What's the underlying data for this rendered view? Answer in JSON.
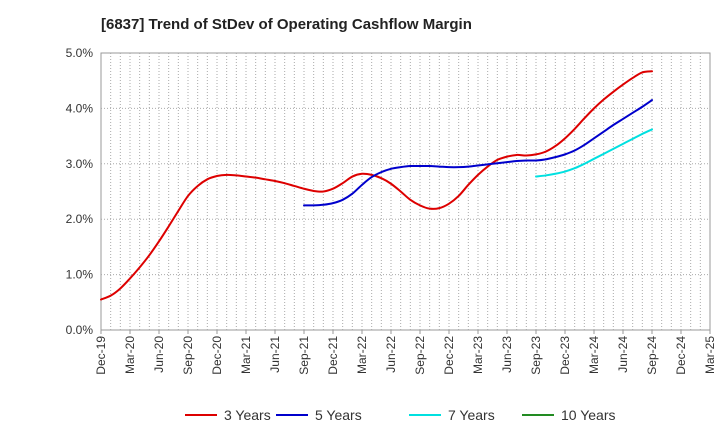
{
  "chart_data": {
    "type": "line",
    "title": "[6837]  Trend of StDev of Operating Cashflow Margin",
    "xlabel": "",
    "ylabel": "",
    "ylim": [
      0,
      5
    ],
    "grid": true,
    "legend_position": "bottom",
    "x_tick_labels": [
      "Dec-19",
      "Mar-20",
      "Jun-20",
      "Sep-20",
      "Dec-20",
      "Mar-21",
      "Jun-21",
      "Sep-21",
      "Dec-21",
      "Mar-22",
      "Jun-22",
      "Sep-22",
      "Dec-22",
      "Mar-23",
      "Jun-23",
      "Sep-23",
      "Dec-23",
      "Mar-24",
      "Jun-24",
      "Sep-24",
      "Dec-24",
      "Mar-25"
    ],
    "y_tick_labels": [
      "0.0%",
      "1.0%",
      "2.0%",
      "3.0%",
      "4.0%",
      "5.0%"
    ],
    "series": [
      {
        "name": "3 Years",
        "color": "#dd0000",
        "x": [
          "2019-12",
          "2020-01",
          "2020-02",
          "2020-03",
          "2020-04",
          "2020-05",
          "2020-06",
          "2020-07",
          "2020-08",
          "2020-09",
          "2020-10",
          "2020-11",
          "2020-12",
          "2021-01",
          "2021-02",
          "2021-03",
          "2021-04",
          "2021-05",
          "2021-06",
          "2021-07",
          "2021-08",
          "2021-09",
          "2021-10",
          "2021-11",
          "2021-12",
          "2022-01",
          "2022-02",
          "2022-03",
          "2022-04",
          "2022-05",
          "2022-06",
          "2022-07",
          "2022-08",
          "2022-09",
          "2022-10",
          "2022-11",
          "2022-12",
          "2023-01",
          "2023-02",
          "2023-03",
          "2023-04",
          "2023-05",
          "2023-06",
          "2023-07",
          "2023-08",
          "2023-09",
          "2023-10",
          "2023-11",
          "2023-12",
          "2024-01",
          "2024-02",
          "2024-03",
          "2024-04",
          "2024-05",
          "2024-06",
          "2024-07",
          "2024-08",
          "2024-09"
        ],
        "values": [
          0.55,
          0.62,
          0.75,
          0.93,
          1.13,
          1.35,
          1.6,
          1.87,
          2.15,
          2.42,
          2.6,
          2.72,
          2.78,
          2.8,
          2.79,
          2.77,
          2.75,
          2.72,
          2.69,
          2.65,
          2.6,
          2.55,
          2.51,
          2.5,
          2.55,
          2.65,
          2.77,
          2.82,
          2.8,
          2.74,
          2.64,
          2.5,
          2.35,
          2.25,
          2.19,
          2.2,
          2.28,
          2.42,
          2.62,
          2.8,
          2.95,
          3.07,
          3.13,
          3.16,
          3.15,
          3.17,
          3.22,
          3.32,
          3.46,
          3.63,
          3.82,
          4.0,
          4.16,
          4.3,
          4.43,
          4.55,
          4.65,
          4.67
        ]
      },
      {
        "name": "5 Years",
        "color": "#0000cc",
        "x": [
          "2021-09",
          "2021-10",
          "2021-11",
          "2021-12",
          "2022-01",
          "2022-02",
          "2022-03",
          "2022-04",
          "2022-05",
          "2022-06",
          "2022-07",
          "2022-08",
          "2022-09",
          "2022-10",
          "2022-11",
          "2022-12",
          "2023-01",
          "2023-02",
          "2023-03",
          "2023-04",
          "2023-05",
          "2023-06",
          "2023-07",
          "2023-08",
          "2023-09",
          "2023-10",
          "2023-11",
          "2023-12",
          "2024-01",
          "2024-02",
          "2024-03",
          "2024-04",
          "2024-05",
          "2024-06",
          "2024-07",
          "2024-08",
          "2024-09"
        ],
        "values": [
          2.25,
          2.25,
          2.26,
          2.29,
          2.35,
          2.46,
          2.62,
          2.76,
          2.85,
          2.91,
          2.94,
          2.96,
          2.96,
          2.96,
          2.95,
          2.94,
          2.94,
          2.95,
          2.97,
          2.99,
          3.01,
          3.03,
          3.05,
          3.06,
          3.06,
          3.08,
          3.12,
          3.17,
          3.24,
          3.34,
          3.46,
          3.58,
          3.7,
          3.81,
          3.92,
          4.03,
          4.15
        ]
      },
      {
        "name": "7 Years",
        "color": "#00e0e0",
        "x": [
          "2023-09",
          "2023-10",
          "2023-11",
          "2023-12",
          "2024-01",
          "2024-02",
          "2024-03",
          "2024-04",
          "2024-05",
          "2024-06",
          "2024-07",
          "2024-08",
          "2024-09"
        ],
        "values": [
          2.77,
          2.79,
          2.82,
          2.86,
          2.92,
          3.0,
          3.09,
          3.18,
          3.27,
          3.36,
          3.45,
          3.54,
          3.62
        ]
      },
      {
        "name": "10 Years",
        "color": "#228b22",
        "x": [],
        "values": []
      }
    ]
  }
}
